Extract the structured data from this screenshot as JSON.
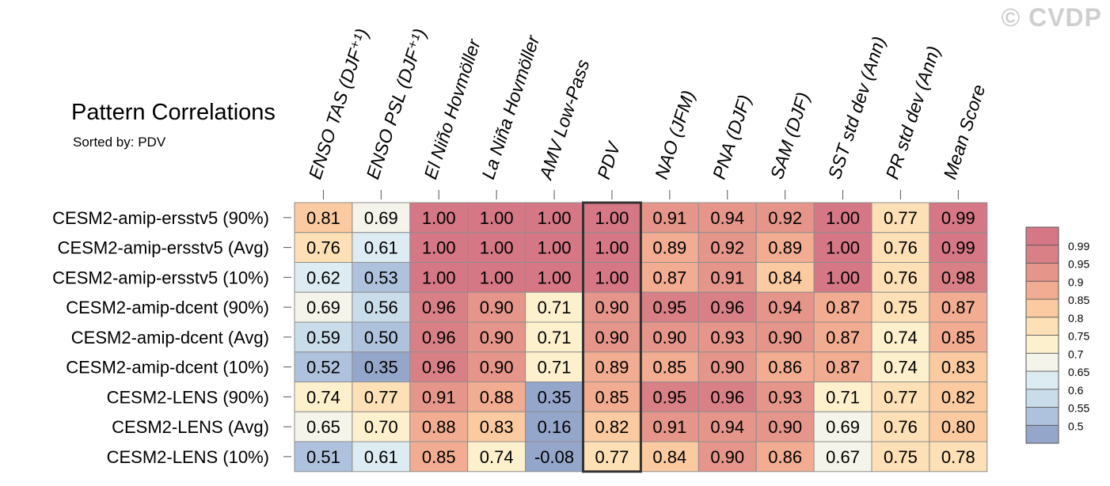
{
  "chart_data": {
    "type": "heatmap",
    "title": "Pattern Correlations",
    "subtitle": "Sorted by: PDV",
    "watermark": "© CVDP",
    "columns": [
      "ENSO TAS (DJF⁺¹)",
      "ENSO PSL (DJF⁺¹)",
      "El Niño Hovmöller",
      "La Niña Hovmöller",
      "AMV Low-Pass",
      "PDV",
      "NAO (JFM)",
      "PNA (DJF)",
      "SAM (DJF)",
      "SST std dev (Ann)",
      "PR std dev (Ann)",
      "Mean Score"
    ],
    "highlighted_column": "PDV",
    "rows": [
      "CESM2-amip-ersstv5 (90%)",
      "CESM2-amip-ersstv5 (Avg)",
      "CESM2-amip-ersstv5 (10%)",
      "CESM2-amip-dcent (90%)",
      "CESM2-amip-dcent (Avg)",
      "CESM2-amip-dcent (10%)",
      "CESM2-LENS (90%)",
      "CESM2-LENS (Avg)",
      "CESM2-LENS (10%)"
    ],
    "values": [
      [
        "0.81",
        "0.69",
        "1.00",
        "1.00",
        "1.00",
        "1.00",
        "0.91",
        "0.94",
        "0.92",
        "1.00",
        "0.77",
        "0.99"
      ],
      [
        "0.76",
        "0.61",
        "1.00",
        "1.00",
        "1.00",
        "1.00",
        "0.89",
        "0.92",
        "0.89",
        "1.00",
        "0.76",
        "0.99"
      ],
      [
        "0.62",
        "0.53",
        "1.00",
        "1.00",
        "1.00",
        "1.00",
        "0.87",
        "0.91",
        "0.84",
        "1.00",
        "0.76",
        "0.98"
      ],
      [
        "0.69",
        "0.56",
        "0.96",
        "0.90",
        "0.71",
        "0.90",
        "0.95",
        "0.96",
        "0.94",
        "0.87",
        "0.75",
        "0.87"
      ],
      [
        "0.59",
        "0.50",
        "0.96",
        "0.90",
        "0.71",
        "0.90",
        "0.90",
        "0.93",
        "0.90",
        "0.87",
        "0.74",
        "0.85"
      ],
      [
        "0.52",
        "0.35",
        "0.96",
        "0.90",
        "0.71",
        "0.89",
        "0.85",
        "0.90",
        "0.86",
        "0.87",
        "0.74",
        "0.83"
      ],
      [
        "0.74",
        "0.77",
        "0.91",
        "0.88",
        "0.35",
        "0.85",
        "0.95",
        "0.96",
        "0.93",
        "0.71",
        "0.77",
        "0.82"
      ],
      [
        "0.65",
        "0.70",
        "0.88",
        "0.83",
        "0.16",
        "0.82",
        "0.91",
        "0.94",
        "0.90",
        "0.69",
        "0.76",
        "0.80"
      ],
      [
        "0.51",
        "0.61",
        "0.85",
        "0.74",
        "-0.08",
        "0.77",
        "0.84",
        "0.90",
        "0.86",
        "0.67",
        "0.75",
        "0.78"
      ]
    ],
    "colorbar": {
      "levels": [
        "0.5",
        "0.55",
        "0.6",
        "0.65",
        "0.7",
        "0.75",
        "0.8",
        "0.85",
        "0.9",
        "0.95",
        "0.99"
      ],
      "colors": [
        "#95a6cb",
        "#afc2dd",
        "#c9dcea",
        "#ddecf2",
        "#f4f4ea",
        "#fdf0cd",
        "#fde0b6",
        "#fbcaa0",
        "#f2ac91",
        "#e5958a",
        "#d88085",
        "#d57785"
      ]
    },
    "grid": true
  }
}
